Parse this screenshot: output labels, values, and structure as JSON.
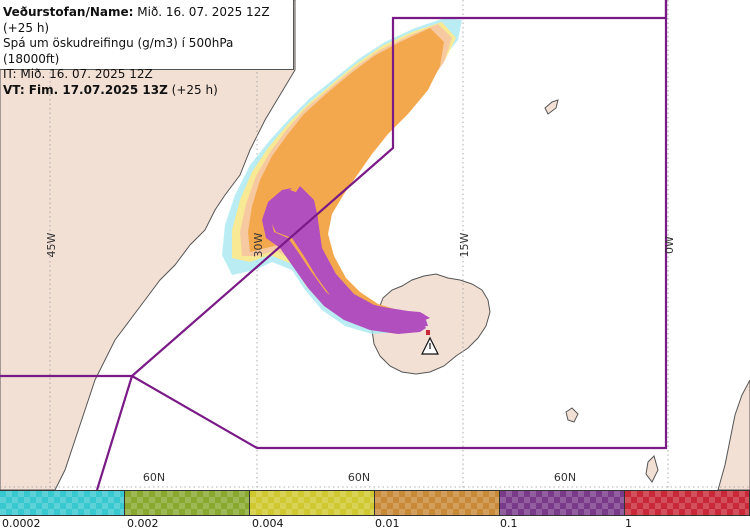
{
  "header": {
    "line1_bold": "Veðurstofan/Name:",
    "line1_rest": " Mið. 16. 07. 2025 12Z (+25 h)",
    "line2": "Spá um öskudreifingu (g/m3) í 500hPa (18000ft)",
    "line3": "IT: Mið. 16. 07. 2025 12Z",
    "line4_bold": "VT: Fim. 17.07.2025 13Z",
    "line4_rest": " (+25 h)"
  },
  "map": {
    "longitude_labels": [
      "45W",
      "30W",
      "15W",
      "0W"
    ],
    "latitude_labels": [
      "60N",
      "60N",
      "60N"
    ],
    "colors": {
      "sea": "#ffffff",
      "land": "#f2e0d5",
      "coast": "#555555",
      "grid": "#9a9a9a",
      "boundary": "#7a1a86",
      "ash_low": "#f7c9a0",
      "ash_med": "#f4a84e",
      "ash_high": "#b24fbf",
      "ash_fringe": "#ffe88a",
      "ash_edge": "#a8e8f0"
    },
    "volcano_icon": "warning-triangle-icon"
  },
  "legend": {
    "colors": [
      "#38c8d0",
      "#88a830",
      "#d0c830",
      "#c88a38",
      "#7a3a8a",
      "#c82838"
    ],
    "labels": [
      "0.0002",
      "0.002",
      "0.004",
      "0.01",
      "0.1",
      "1"
    ]
  }
}
